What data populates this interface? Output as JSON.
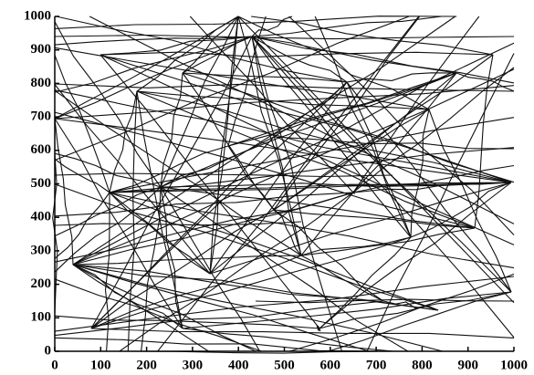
{
  "chart_data": {
    "type": "network",
    "xlim": [
      0,
      1000
    ],
    "ylim": [
      0,
      1000
    ],
    "xticks": [
      0,
      100,
      200,
      300,
      400,
      500,
      600,
      700,
      800,
      900,
      1000
    ],
    "yticks": [
      0,
      100,
      200,
      300,
      400,
      500,
      600,
      700,
      800,
      900,
      1000
    ]
  }
}
